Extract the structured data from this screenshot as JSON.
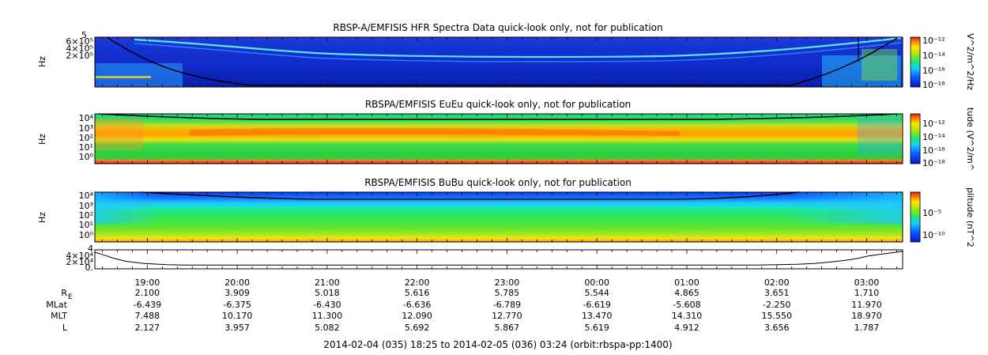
{
  "chart_data": [
    {
      "type": "heatmap",
      "title": "RBSP-A/EMFISIS  HFR Spectra Data quick-look only, not for publication",
      "ylabel": "Hz",
      "yticks": [
        "6×10⁵",
        "4×10⁵",
        "2×10⁵"
      ],
      "ytop_label": "5",
      "colorbar_label": "V^2/m^2/Hz",
      "colorbar_ticks": [
        "10⁻¹²",
        "10⁻¹⁴",
        "10⁻¹⁶",
        "10⁻¹⁸"
      ]
    },
    {
      "type": "heatmap",
      "title": "RBSPA/EMFISIS  EuEu quick-look only, not for publication",
      "ylabel": "Hz",
      "yscale": "log",
      "yticks": [
        "10⁴",
        "10³",
        "10²",
        "10¹",
        "10⁰"
      ],
      "colorbar_label": "tude (V^2/m^",
      "colorbar_ticks": [
        "10⁻¹²",
        "10⁻¹⁴",
        "10⁻¹⁶",
        "10⁻¹⁸"
      ]
    },
    {
      "type": "heatmap",
      "title": "RBSPA/EMFISIS  BuBu quick-look only, not for publication",
      "ylabel": "Hz",
      "yscale": "log",
      "yticks": [
        "10⁴",
        "10³",
        "10²",
        "10¹",
        "10⁰"
      ],
      "colorbar_label": "plitude (nT^2",
      "colorbar_ticks": [
        "10⁻⁵",
        "10⁻¹⁰"
      ]
    },
    {
      "type": "line",
      "yticks": [
        "4×10⁴",
        "2×10⁴",
        "0."
      ],
      "ytop_label": "4",
      "x_hours": [
        0,
        0.08,
        0.2,
        0.35,
        0.55,
        0.8,
        1.0,
        7.35,
        7.6,
        7.8,
        8.0,
        8.2,
        8.4,
        8.5,
        8.6,
        8.8,
        8.98
      ],
      "y": [
        38000,
        33000,
        24000,
        16000,
        11000,
        8000,
        7000,
        7000,
        8000,
        9000,
        11000,
        15000,
        20000,
        24000,
        29000,
        35000,
        40000
      ]
    }
  ],
  "time_axis": {
    "ticks": [
      "19:00",
      "20:00",
      "21:00",
      "22:00",
      "23:00",
      "00:00",
      "01:00",
      "02:00",
      "03:00"
    ],
    "start_hour": 18.4167,
    "end_hour": 27.4
  },
  "ephemeris": {
    "rows": [
      {
        "label": "R",
        "subscript": "E",
        "values": [
          "2.100",
          "3.909",
          "5.018",
          "5.616",
          "5.785",
          "5.544",
          "4.865",
          "3.651",
          "1.710"
        ]
      },
      {
        "label": "MLat",
        "values": [
          "-6.439",
          "-6.375",
          "-6.430",
          "-6.636",
          "-6.789",
          "-6.619",
          "-5.608",
          "-2.250",
          "11.970"
        ]
      },
      {
        "label": "MLT",
        "values": [
          "7.488",
          "10.170",
          "11.300",
          "12.090",
          "12.770",
          "13.470",
          "14.310",
          "15.550",
          "18.970"
        ]
      },
      {
        "label": "L",
        "values": [
          "2.127",
          "3.957",
          "5.082",
          "5.692",
          "5.867",
          "5.619",
          "4.912",
          "3.656",
          "1.787"
        ]
      }
    ]
  },
  "footer": "2014-02-04 (035) 18:25 to 2014-02-05 (036) 03:24 (orbit:rbspa-pp:1400)"
}
